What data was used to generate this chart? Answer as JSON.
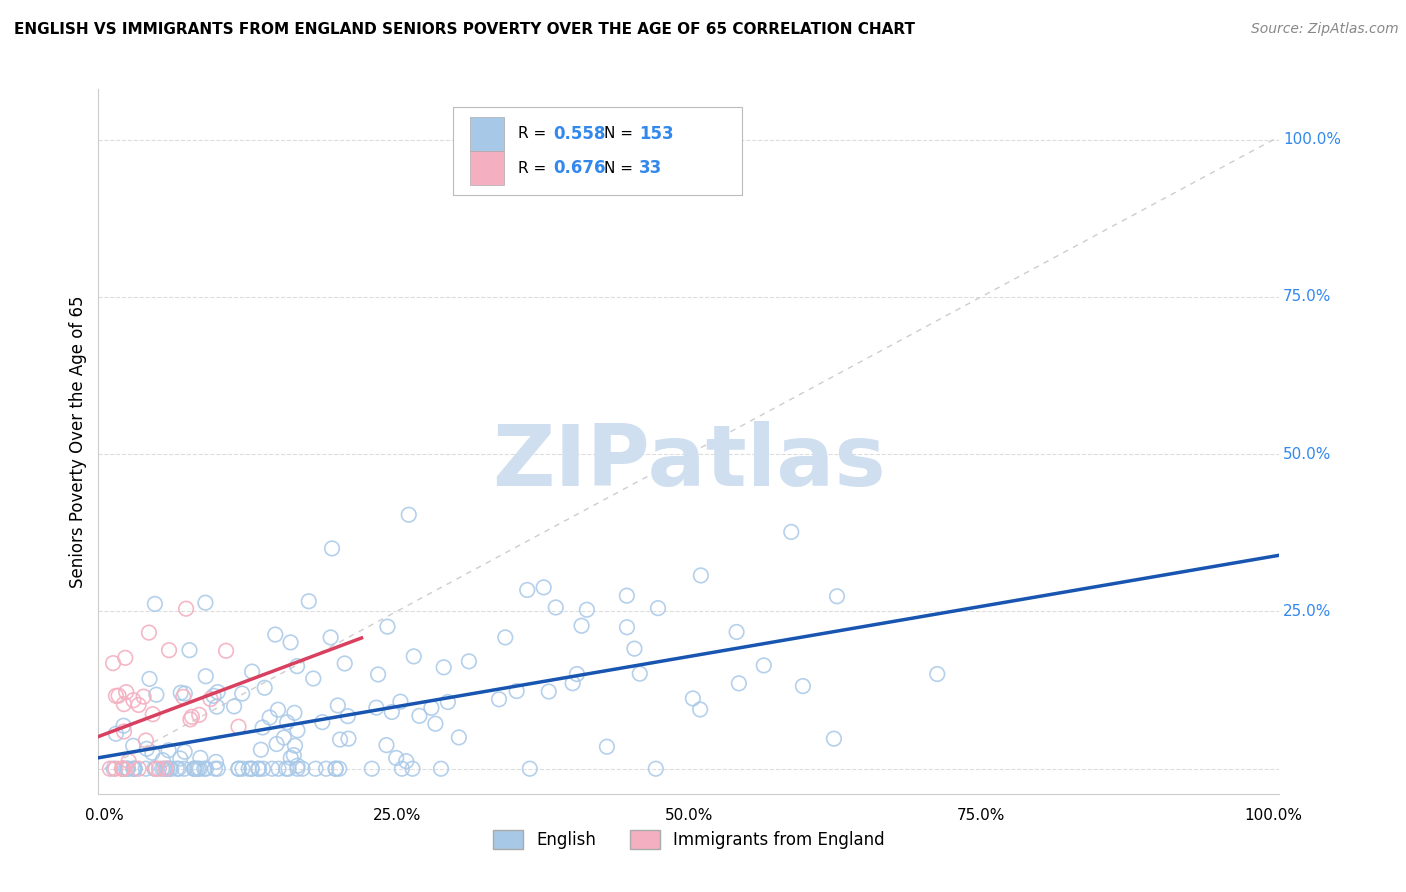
{
  "title": "ENGLISH VS IMMIGRANTS FROM ENGLAND SENIORS POVERTY OVER THE AGE OF 65 CORRELATION CHART",
  "source": "Source: ZipAtlas.com",
  "ylabel": "Seniors Poverty Over the Age of 65",
  "xlim": [
    0.0,
    1.0
  ],
  "ylim": [
    0.0,
    1.05
  ],
  "xtick_vals": [
    0.0,
    0.25,
    0.5,
    0.75,
    1.0
  ],
  "xtick_labels": [
    "0.0%",
    "25.0%",
    "50.0%",
    "75.0%",
    "100.0%"
  ],
  "ytick_vals": [
    0.0,
    0.25,
    0.5,
    0.75,
    1.0
  ],
  "right_ytick_labels": [
    "100.0%",
    "75.0%",
    "50.0%",
    "25.0%"
  ],
  "right_ytick_vals": [
    1.0,
    0.75,
    0.5,
    0.25
  ],
  "english_R": 0.558,
  "english_N": 153,
  "immigrants_R": 0.676,
  "immigrants_N": 33,
  "english_color": "#a8c8e8",
  "english_edge_color": "#7aaad0",
  "immigrants_color": "#f4b0c0",
  "immigrants_edge_color": "#e080a0",
  "english_line_color": "#1855b0",
  "immigrants_line_color": "#d84060",
  "diagonal_color": "#c8c8c8",
  "watermark": "ZIPatlas",
  "watermark_color": "#d0dff0",
  "legend_val_color": "#3388ee",
  "background_color": "#ffffff",
  "grid_color": "#dddddd",
  "spine_color": "#cccccc"
}
